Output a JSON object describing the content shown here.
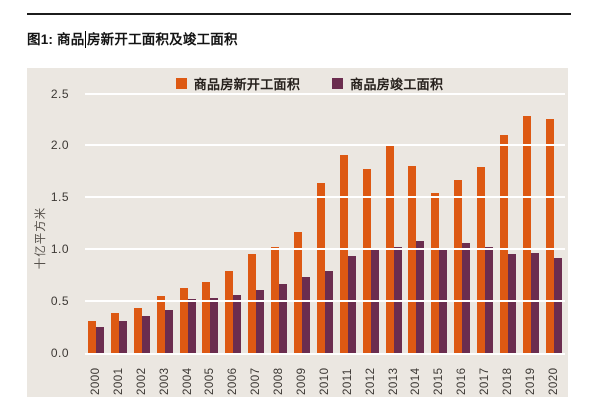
{
  "page": {
    "title_full": "图1: 商品房新开工面积及竣工面积",
    "title_part1": "图1: 商品",
    "title_part2": "房新开工面积及竣工面积"
  },
  "colors": {
    "new_starts_orange": "#dd5913",
    "completions_purple": "#6b2d4f",
    "panel_background": "#ebe7e1",
    "gridline_white": "#ffffff",
    "title_text": "#141414",
    "tick_text": "#3c3834"
  },
  "chart_data": {
    "type": "bar",
    "title": "图1: 商品房新开工面积及竣工面积",
    "xlabel": "",
    "ylabel": "十亿平方米",
    "ylim": [
      0,
      2.5
    ],
    "yticks": [
      "0.0",
      "0.5",
      "1.0",
      "1.5",
      "2.0",
      "2.5"
    ],
    "grid": true,
    "legend_position": "top-center",
    "categories": [
      "2000",
      "2001",
      "2002",
      "2003",
      "2004",
      "2005",
      "2006",
      "2007",
      "2008",
      "2009",
      "2010",
      "2011",
      "2012",
      "2013",
      "2014",
      "2015",
      "2016",
      "2017",
      "2018",
      "2019",
      "2020"
    ],
    "series": [
      {
        "name": "商品房新开工面积",
        "color": "#dd5913",
        "values": [
          0.3,
          0.38,
          0.43,
          0.55,
          0.62,
          0.68,
          0.79,
          0.95,
          1.02,
          1.16,
          1.64,
          1.91,
          1.77,
          2.01,
          1.8,
          1.54,
          1.67,
          1.79,
          2.1,
          2.28,
          2.25
        ]
      },
      {
        "name": "商品房竣工面积",
        "color": "#6b2d4f",
        "values": [
          0.25,
          0.3,
          0.35,
          0.41,
          0.52,
          0.53,
          0.56,
          0.6,
          0.66,
          0.73,
          0.79,
          0.93,
          1.0,
          1.02,
          1.08,
          1.0,
          1.06,
          1.02,
          0.95,
          0.96,
          0.91
        ]
      }
    ]
  }
}
